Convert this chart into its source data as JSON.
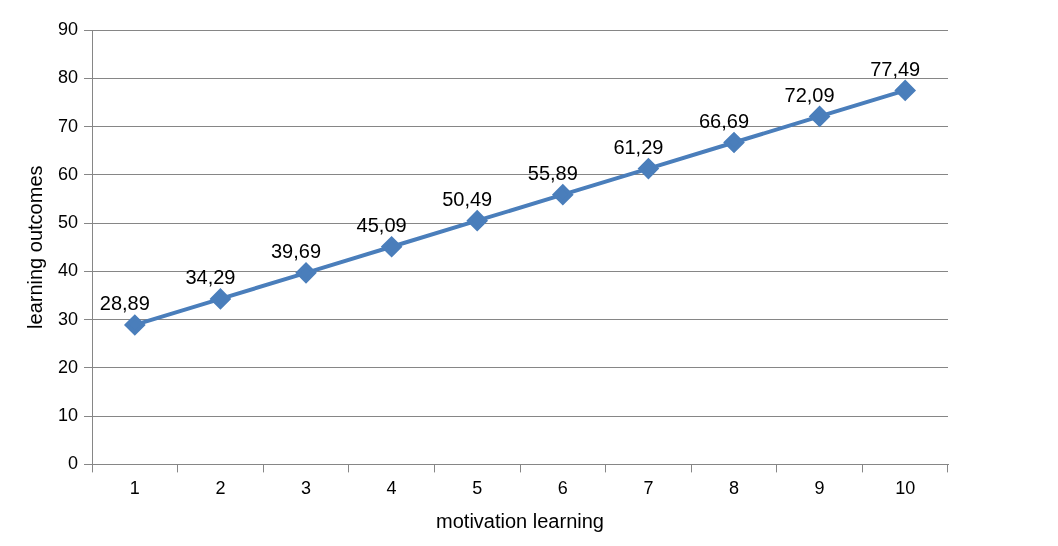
{
  "chart_data": {
    "type": "line",
    "xlabel": "motivation learning",
    "ylabel": "learning outcomes",
    "categories": [
      "1",
      "2",
      "3",
      "4",
      "5",
      "6",
      "7",
      "8",
      "9",
      "10"
    ],
    "series": [
      {
        "color": "#4a7ebb",
        "values": [
          28.89,
          34.29,
          39.69,
          45.09,
          50.49,
          55.89,
          61.29,
          66.69,
          72.09,
          77.49
        ],
        "value_labels": [
          "28,89",
          "34,29",
          "39,69",
          "45,09",
          "50,49",
          "55,89",
          "61,29",
          "66,69",
          "72,09",
          "77,49"
        ]
      }
    ],
    "ylim": [
      0,
      90
    ],
    "yticks": [
      0,
      10,
      20,
      30,
      40,
      50,
      60,
      70,
      80,
      90
    ],
    "grid": "y",
    "legend": false,
    "marker": "diamond",
    "line_style": "solid"
  }
}
